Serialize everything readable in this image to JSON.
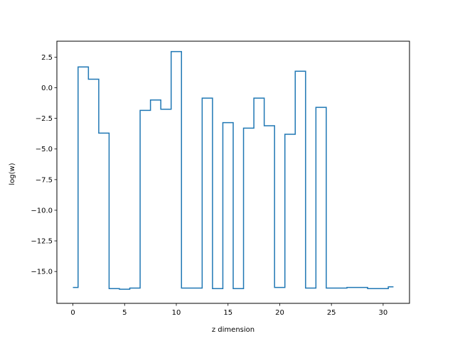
{
  "chart_data": {
    "type": "line",
    "drawstyle": "steps-mid",
    "title": "",
    "xlabel": "z dimension",
    "ylabel": "log(w)",
    "xlim": [
      -1.55,
      32.55
    ],
    "ylim": [
      -17.6,
      3.8
    ],
    "xticks": [
      0,
      5,
      10,
      15,
      20,
      25,
      30
    ],
    "xtick_labels": [
      "0",
      "5",
      "10",
      "15",
      "20",
      "25",
      "30"
    ],
    "yticks": [
      2.5,
      0.0,
      -2.5,
      -5.0,
      -7.5,
      -10.0,
      -12.5,
      -15.0
    ],
    "ytick_labels": [
      "2.5",
      "0.0",
      "−2.5",
      "−5.0",
      "−7.5",
      "−10.0",
      "−12.5",
      "−15.0"
    ],
    "grid": false,
    "series": [
      {
        "color": "#1f77b4",
        "x": [
          0,
          1,
          2,
          3,
          4,
          5,
          6,
          7,
          8,
          9,
          10,
          11,
          12,
          13,
          14,
          15,
          16,
          17,
          18,
          19,
          20,
          21,
          22,
          23,
          24,
          25,
          26,
          27,
          28,
          29,
          30,
          31
        ],
        "values": [
          -16.3,
          1.7,
          0.7,
          -3.7,
          -16.4,
          -16.45,
          -16.35,
          -1.85,
          -1.0,
          -1.75,
          2.95,
          -16.35,
          -16.35,
          -0.85,
          -16.4,
          -2.85,
          -16.4,
          -3.3,
          -0.85,
          -3.1,
          -16.3,
          -3.8,
          1.35,
          -16.35,
          -1.6,
          -16.35,
          -16.35,
          -16.3,
          -16.3,
          -16.4,
          -16.4,
          -16.25
        ]
      }
    ]
  }
}
